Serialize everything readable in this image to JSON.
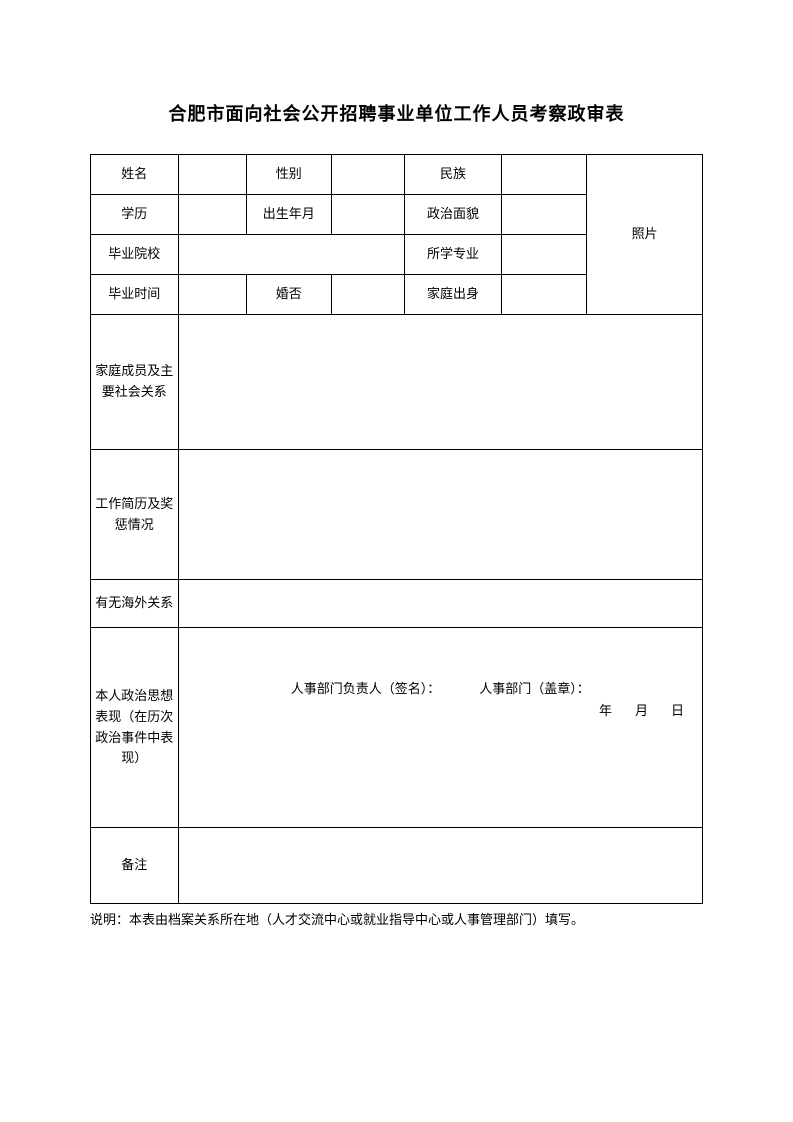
{
  "title": "合肥市面向社会公开招聘事业单位工作人员考察政审表",
  "fields": {
    "name_label": "姓名",
    "gender_label": "性别",
    "ethnicity_label": "民族",
    "education_label": "学历",
    "birth_label": "出生年月",
    "political_label": "政治面貌",
    "school_label": "毕业院校",
    "major_label": "所学专业",
    "gradtime_label": "毕业时间",
    "marriage_label": "婚否",
    "family_origin_label": "家庭出身",
    "photo_label": "照片",
    "family_members_label": "家庭成员及主要社会关系",
    "work_history_label": "工作简历及奖惩情况",
    "overseas_label": "有无海外关系",
    "political_thought_label": "本人政治思想表现（在历次政治事件中表现）",
    "remark_label": "备注"
  },
  "signature": {
    "hr_leader": "人事部门负责人（签名）：",
    "hr_dept": "人事部门（盖章）：",
    "year": "年",
    "month": "月",
    "day": "日"
  },
  "note": "说明：本表由档案关系所在地（人才交流中心或就业指导中心或人事管理部门）填写。",
  "style": {
    "border_color": "#000000",
    "background_color": "#ffffff",
    "text_color": "#000000",
    "title_fontsize": 18,
    "cell_fontsize": 13,
    "note_fontsize": 13
  }
}
